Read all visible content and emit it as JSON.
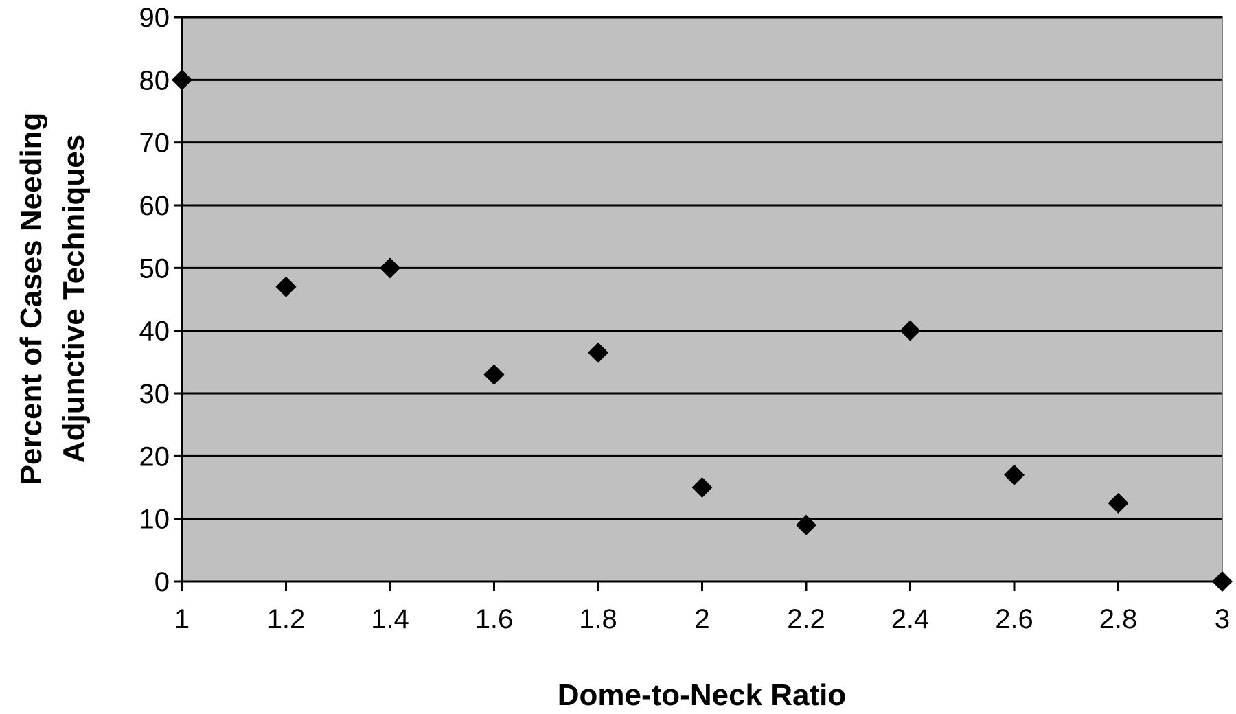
{
  "chart_data": {
    "type": "scatter",
    "title": "",
    "xlabel": "Dome-to-Neck Ratio",
    "ylabel_lines": [
      "Percent of Cases Needing",
      "Adjunctive Techniques"
    ],
    "xlim": [
      1,
      3
    ],
    "ylim": [
      0,
      90
    ],
    "x_ticks": [
      "1",
      "1.2",
      "1.4",
      "1.6",
      "1.8",
      "2",
      "2.2",
      "2.4",
      "2.6",
      "2.8",
      "3"
    ],
    "y_ticks": [
      "0",
      "10",
      "20",
      "30",
      "40",
      "50",
      "60",
      "70",
      "80",
      "90"
    ],
    "grid": "horizontal",
    "legend": "none",
    "marker": "diamond",
    "colors": {
      "plot_background": "#c0c0c0",
      "marker": "#000000",
      "gridline": "#000000"
    },
    "points": [
      {
        "x": 1.0,
        "y": 80
      },
      {
        "x": 1.2,
        "y": 47
      },
      {
        "x": 1.4,
        "y": 50
      },
      {
        "x": 1.6,
        "y": 33
      },
      {
        "x": 1.8,
        "y": 36.5
      },
      {
        "x": 2.0,
        "y": 15
      },
      {
        "x": 2.2,
        "y": 9
      },
      {
        "x": 2.4,
        "y": 40
      },
      {
        "x": 2.6,
        "y": 17
      },
      {
        "x": 2.8,
        "y": 12.5
      },
      {
        "x": 3.0,
        "y": 0
      }
    ]
  }
}
